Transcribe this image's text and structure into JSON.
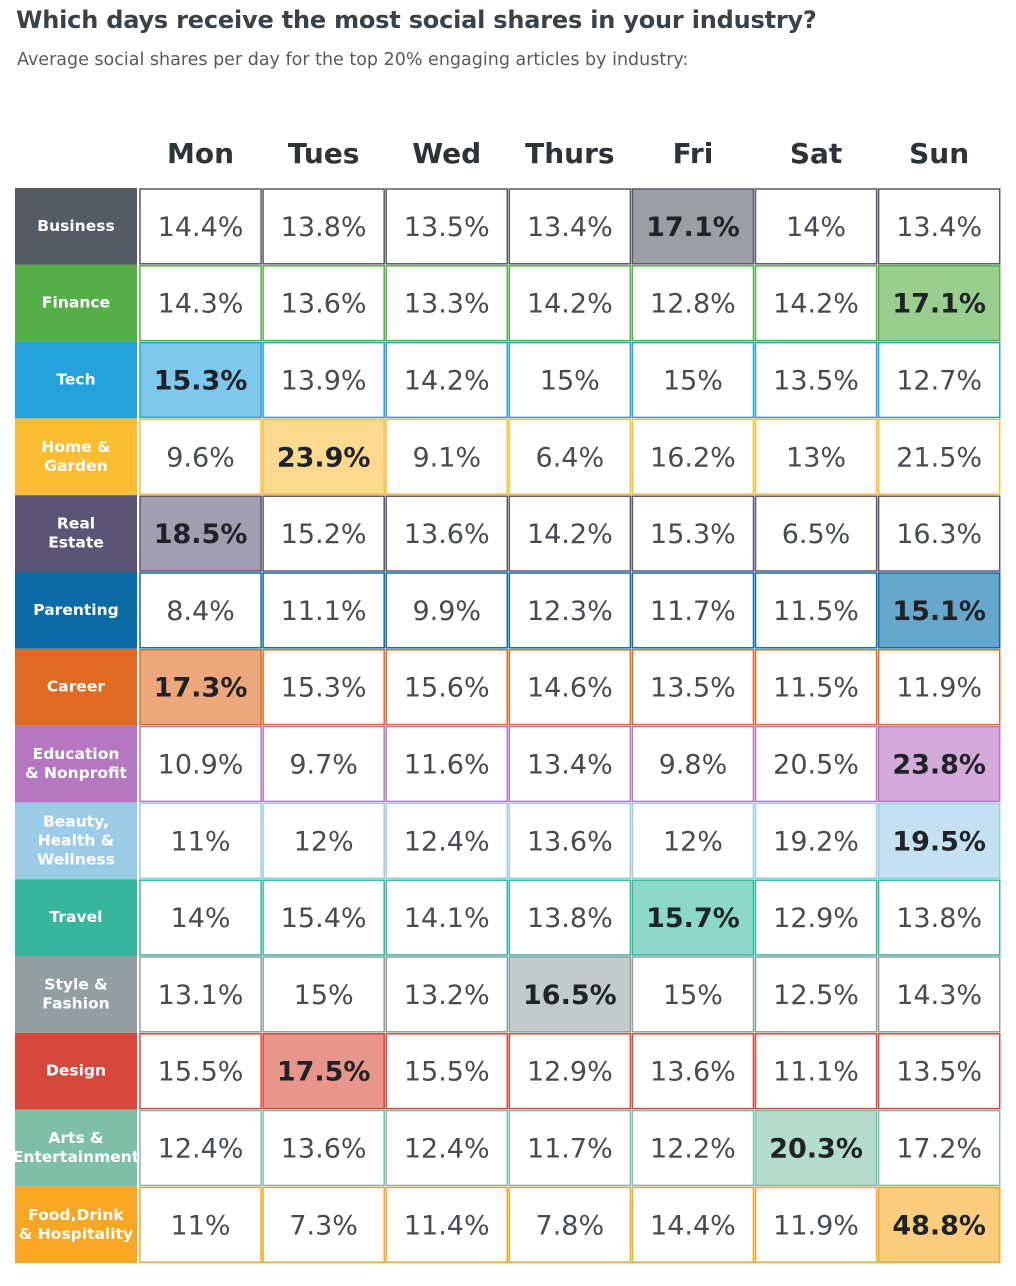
{
  "title": "Which days receive the most social shares in your industry?",
  "subtitle": "Average social shares per day for the top 20% engaging articles by industry:",
  "chart_data": {
    "type": "heatmap",
    "title": "Which days receive the most social shares in your industry?",
    "subtitle": "Average social shares per day for the top 20% engaging articles by industry:",
    "columns": [
      "Mon",
      "Tues",
      "Wed",
      "Thurs",
      "Fri",
      "Sat",
      "Sun"
    ],
    "rows": [
      {
        "label": [
          "Business"
        ],
        "color": "#545b62",
        "highlight": "#9b9fa3",
        "values": [
          "14.4%",
          "13.8%",
          "13.5%",
          "13.4%",
          "17.1%",
          "14%",
          "13.4%"
        ],
        "max_index": 4
      },
      {
        "label": [
          "Finance"
        ],
        "color": "#56ae4b",
        "highlight": "#99ce8e",
        "values": [
          "14.3%",
          "13.6%",
          "13.3%",
          "14.2%",
          "12.8%",
          "14.2%",
          "17.1%"
        ],
        "max_index": 6
      },
      {
        "label": [
          "Tech"
        ],
        "color": "#23a2db",
        "highlight": "#7fc7eb",
        "values": [
          "15.3%",
          "13.9%",
          "14.2%",
          "15%",
          "15%",
          "13.5%",
          "12.7%"
        ],
        "max_index": 0
      },
      {
        "label": [
          "Home &",
          "Garden"
        ],
        "color": "#fbbd33",
        "highlight": "#fcd98e",
        "values": [
          "9.6%",
          "23.9%",
          "9.1%",
          "6.4%",
          "16.2%",
          "13%",
          "21.5%"
        ],
        "max_index": 1
      },
      {
        "label": [
          "Real",
          "Estate"
        ],
        "color": "#5b5474",
        "highlight": "#a29eb2",
        "values": [
          "18.5%",
          "15.2%",
          "13.6%",
          "14.2%",
          "15.3%",
          "6.5%",
          "16.3%"
        ],
        "max_index": 0
      },
      {
        "label": [
          "Parenting"
        ],
        "color": "#0c6aa4",
        "highlight": "#67a6cd",
        "values": [
          "8.4%",
          "11.1%",
          "9.9%",
          "12.3%",
          "11.7%",
          "11.5%",
          "15.1%"
        ],
        "max_index": 6
      },
      {
        "label": [
          "Career"
        ],
        "color": "#e06a22",
        "highlight": "#eda77c",
        "values": [
          "17.3%",
          "15.3%",
          "15.6%",
          "14.6%",
          "13.5%",
          "11.5%",
          "11.9%"
        ],
        "max_index": 0
      },
      {
        "label": [
          "Education",
          "& Nonprofit"
        ],
        "color": "#b577c0",
        "highlight": "#d4aada",
        "values": [
          "10.9%",
          "9.7%",
          "11.6%",
          "13.4%",
          "9.8%",
          "20.5%",
          "23.8%"
        ],
        "max_index": 6
      },
      {
        "label": [
          "Beauty,",
          "Health &",
          "Wellness"
        ],
        "color": "#9ccbe8",
        "highlight": "#c4e0f1",
        "values": [
          "11%",
          "12%",
          "12.4%",
          "13.6%",
          "12%",
          "19.2%",
          "19.5%"
        ],
        "max_index": 6
      },
      {
        "label": [
          "Travel"
        ],
        "color": "#36b79d",
        "highlight": "#8dd8c6",
        "values": [
          "14%",
          "15.4%",
          "14.1%",
          "13.8%",
          "15.7%",
          "12.9%",
          "13.8%"
        ],
        "max_index": 4
      },
      {
        "label": [
          "Style &",
          "Fashion"
        ],
        "color": "#939ea2",
        "highlight": "#c3cacc",
        "values": [
          "13.1%",
          "15%",
          "13.2%",
          "16.5%",
          "15%",
          "12.5%",
          "14.3%"
        ],
        "max_index": 3
      },
      {
        "label": [
          "Design"
        ],
        "color": "#d6483b",
        "highlight": "#e8958b",
        "values": [
          "15.5%",
          "17.5%",
          "15.5%",
          "12.9%",
          "13.6%",
          "11.1%",
          "13.5%"
        ],
        "max_index": 1
      },
      {
        "label": [
          "Arts &",
          "Entertainment"
        ],
        "color": "#7fbfa8",
        "highlight": "#b5dccd",
        "values": [
          "12.4%",
          "13.6%",
          "12.4%",
          "11.7%",
          "12.2%",
          "20.3%",
          "17.2%"
        ],
        "max_index": 5
      },
      {
        "label": [
          "Food,Drink",
          "& Hospitality"
        ],
        "color": "#f8a623",
        "highlight": "#fbcc7d",
        "values": [
          "11%",
          "7.3%",
          "11.4%",
          "7.8%",
          "14.4%",
          "11.9%",
          "48.8%"
        ],
        "max_index": 6
      }
    ]
  }
}
